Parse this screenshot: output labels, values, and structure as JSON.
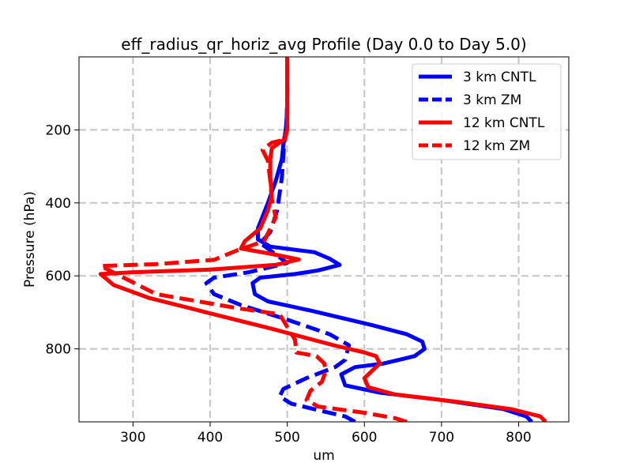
{
  "chart_data": {
    "type": "line",
    "title": "eff_radius_qr_horiz_avg Profile (Day 0.0 to Day 5.0)",
    "xlabel": "um",
    "ylabel": "Pressure (hPa)",
    "xlim": [
      230,
      865
    ],
    "ylim": [
      1000,
      0
    ],
    "y_inverted": true,
    "xticks": [
      300,
      400,
      500,
      600,
      700,
      800
    ],
    "yticks": [
      200,
      400,
      600,
      800
    ],
    "grid": true,
    "legend_position": "top-right",
    "series": [
      {
        "name": "3 km CNTL",
        "color": "#0000ff",
        "linestyle": "solid",
        "x": [
          817,
          810,
          780,
          700,
          620,
          575,
          570,
          588,
          625,
          665,
          678,
          675,
          655,
          610,
          530,
          475,
          458,
          455,
          465,
          510,
          540,
          568,
          555,
          535,
          478,
          462,
          462,
          475,
          485,
          493,
          495,
          496,
          498,
          500,
          500,
          500
        ],
        "y": [
          1000,
          985,
          965,
          940,
          920,
          900,
          870,
          850,
          840,
          820,
          800,
          780,
          760,
          735,
          695,
          670,
          650,
          620,
          605,
          595,
          585,
          570,
          553,
          535,
          520,
          500,
          470,
          400,
          340,
          280,
          240,
          225,
          200,
          150,
          80,
          0
        ]
      },
      {
        "name": "3 km ZM",
        "color": "#0000ff",
        "linestyle": "dashed",
        "x": [
          588,
          575,
          540,
          505,
          490,
          495,
          525,
          562,
          575,
          580,
          555,
          500,
          440,
          405,
          395,
          405,
          450,
          500,
          465,
          478,
          487,
          493,
          495,
          496,
          499,
          500,
          500
        ],
        "y": [
          1000,
          985,
          968,
          950,
          930,
          910,
          880,
          850,
          830,
          790,
          760,
          720,
          680,
          650,
          620,
          605,
          590,
          565,
          510,
          480,
          420,
          330,
          270,
          235,
          200,
          100,
          0
        ]
      },
      {
        "name": "12 km CNTL",
        "color": "#ff0000",
        "linestyle": "solid",
        "x": [
          835,
          828,
          790,
          720,
          640,
          605,
          600,
          610,
          620,
          615,
          600,
          560,
          480,
          395,
          320,
          275,
          258,
          300,
          400,
          485,
          515,
          480,
          440,
          445,
          465,
          475,
          480,
          478,
          478,
          480,
          490,
          497,
          500,
          500,
          500
        ],
        "y": [
          1000,
          985,
          965,
          945,
          925,
          905,
          880,
          860,
          840,
          820,
          810,
          790,
          745,
          700,
          660,
          625,
          595,
          590,
          583,
          570,
          555,
          540,
          525,
          505,
          470,
          420,
          380,
          330,
          280,
          250,
          235,
          225,
          200,
          100,
          0
        ]
      },
      {
        "name": "12 km ZM",
        "color": "#ff0000",
        "linestyle": "dashed",
        "x": [
          655,
          640,
          600,
          540,
          525,
          530,
          545,
          550,
          548,
          538,
          512,
          510,
          490,
          440,
          330,
          258,
          330,
          405,
          435,
          470,
          485,
          480,
          478,
          475,
          468,
          480,
          495,
          500,
          500
        ],
        "y": [
          1000,
          990,
          975,
          958,
          940,
          915,
          890,
          860,
          840,
          820,
          810,
          775,
          705,
          690,
          650,
          573,
          568,
          556,
          530,
          505,
          440,
          390,
          340,
          285,
          255,
          235,
          228,
          200,
          0
        ]
      }
    ]
  }
}
